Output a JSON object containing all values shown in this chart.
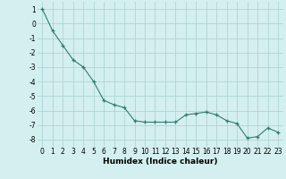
{
  "x": [
    0,
    1,
    2,
    3,
    4,
    5,
    6,
    7,
    8,
    9,
    10,
    11,
    12,
    13,
    14,
    15,
    16,
    17,
    18,
    19,
    20,
    21,
    22,
    23
  ],
  "y": [
    1,
    -0.5,
    -1.5,
    -2.5,
    -3.0,
    -4.0,
    -5.3,
    -5.6,
    -5.8,
    -6.7,
    -6.8,
    -6.8,
    -6.8,
    -6.8,
    -6.3,
    -6.2,
    -6.1,
    -6.3,
    -6.7,
    -6.9,
    -7.9,
    -7.8,
    -7.2,
    -7.5
  ],
  "line_color": "#2e7d6e",
  "marker": "+",
  "marker_color": "#2e7d6e",
  "bg_color": "#d4efef",
  "grid_color": "#aed4d4",
  "xlabel": "Humidex (Indice chaleur)",
  "xlim": [
    -0.5,
    23.5
  ],
  "ylim": [
    -8.5,
    1.5
  ],
  "yticks": [
    1,
    0,
    -1,
    -2,
    -3,
    -4,
    -5,
    -6,
    -7,
    -8
  ],
  "xticks": [
    0,
    1,
    2,
    3,
    4,
    5,
    6,
    7,
    8,
    9,
    10,
    11,
    12,
    13,
    14,
    15,
    16,
    17,
    18,
    19,
    20,
    21,
    22,
    23
  ],
  "xlabel_fontsize": 6.5,
  "tick_fontsize": 5.5
}
